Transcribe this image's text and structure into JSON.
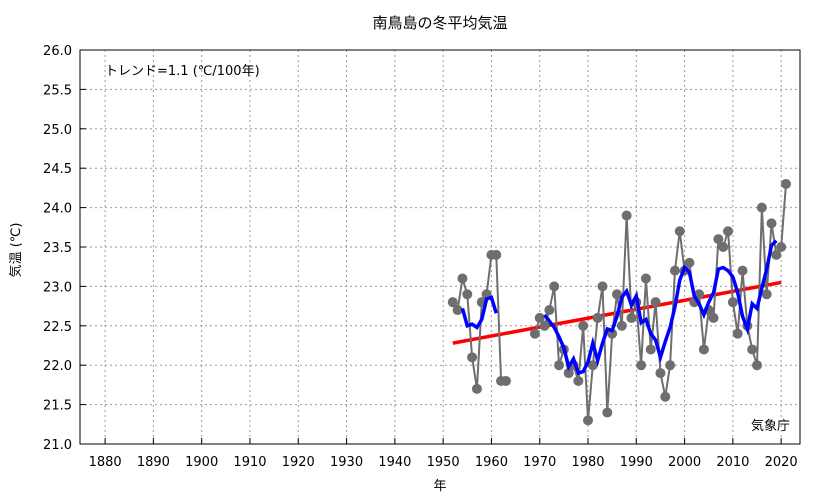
{
  "chart_data": {
    "type": "line",
    "title": "南鳥島の冬平均気温",
    "xlabel": "年",
    "ylabel": "気温 (℃)",
    "annotation": "トレンド=1.1 (℃/100年)",
    "source": "気象庁",
    "xlim": [
      1874.8,
      2023.9
    ],
    "ylim": [
      21.0,
      26.0
    ],
    "xticks": [
      1880,
      1890,
      1900,
      1910,
      1920,
      1930,
      1940,
      1950,
      1960,
      1970,
      1980,
      1990,
      2000,
      2010,
      2020
    ],
    "yticks": [
      "21.0",
      "21.5",
      "22.0",
      "22.5",
      "23.0",
      "23.5",
      "24.0",
      "24.5",
      "25.0",
      "25.5",
      "26.0"
    ],
    "grid": true,
    "colors": {
      "annual": "#6e6e6e",
      "running_mean": "#0000ff",
      "trend": "#ff0000"
    },
    "annual": [
      [
        1952,
        22.8
      ],
      [
        1953,
        22.7
      ],
      [
        1954,
        23.1
      ],
      [
        1955,
        22.9
      ],
      [
        1956,
        22.1
      ],
      [
        1957,
        21.7
      ],
      [
        1958,
        22.8
      ],
      [
        1959,
        22.9
      ],
      [
        1960,
        23.4
      ],
      [
        1961,
        23.4
      ],
      [
        1962,
        21.8
      ],
      [
        1963,
        21.8
      ],
      [
        1969,
        22.4
      ],
      [
        1970,
        22.6
      ],
      [
        1971,
        22.5
      ],
      [
        1972,
        22.7
      ],
      [
        1973,
        23.0
      ],
      [
        1974,
        22.0
      ],
      [
        1975,
        22.2
      ],
      [
        1976,
        21.9
      ],
      [
        1977,
        22.0
      ],
      [
        1978,
        21.8
      ],
      [
        1979,
        22.5
      ],
      [
        1980,
        21.3
      ],
      [
        1981,
        22.0
      ],
      [
        1982,
        22.6
      ],
      [
        1983,
        23.0
      ],
      [
        1984,
        21.4
      ],
      [
        1985,
        22.4
      ],
      [
        1986,
        22.9
      ],
      [
        1987,
        22.5
      ],
      [
        1988,
        23.9
      ],
      [
        1989,
        22.6
      ],
      [
        1990,
        22.8
      ],
      [
        1991,
        22.0
      ],
      [
        1992,
        23.1
      ],
      [
        1993,
        22.2
      ],
      [
        1994,
        22.8
      ],
      [
        1995,
        21.9
      ],
      [
        1996,
        21.6
      ],
      [
        1997,
        22.0
      ],
      [
        1998,
        23.2
      ],
      [
        1999,
        23.7
      ],
      [
        2000,
        23.2
      ],
      [
        2001,
        23.3
      ],
      [
        2002,
        22.8
      ],
      [
        2003,
        22.9
      ],
      [
        2004,
        22.2
      ],
      [
        2005,
        22.7
      ],
      [
        2006,
        22.6
      ],
      [
        2007,
        23.6
      ],
      [
        2008,
        23.5
      ],
      [
        2009,
        23.7
      ],
      [
        2010,
        22.8
      ],
      [
        2011,
        22.4
      ],
      [
        2012,
        23.2
      ],
      [
        2013,
        22.5
      ],
      [
        2014,
        22.2
      ],
      [
        2015,
        22.0
      ],
      [
        2016,
        24.0
      ],
      [
        2017,
        22.9
      ],
      [
        2018,
        23.8
      ],
      [
        2019,
        23.4
      ],
      [
        2020,
        23.5
      ],
      [
        2021,
        24.3
      ]
    ],
    "running_mean_window": 5,
    "trend": [
      [
        1952,
        22.28
      ],
      [
        2020,
        23.05
      ]
    ]
  }
}
